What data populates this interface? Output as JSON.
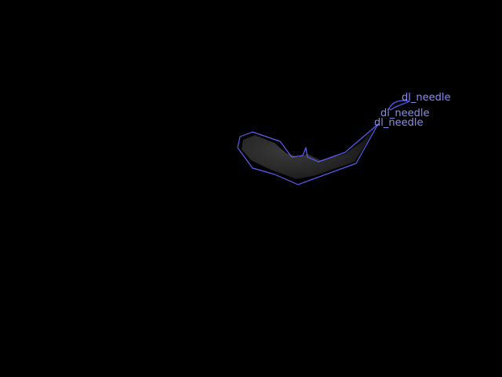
{
  "image": {
    "background_color": "#000000",
    "annotation_color": "#5b5ff0",
    "label_color": "#8a8cf0",
    "object_fill": "#2e2e2e"
  },
  "annotations": [
    {
      "label": "dl_needle"
    },
    {
      "label": "dl_needle"
    },
    {
      "label": "dl_needle"
    }
  ]
}
